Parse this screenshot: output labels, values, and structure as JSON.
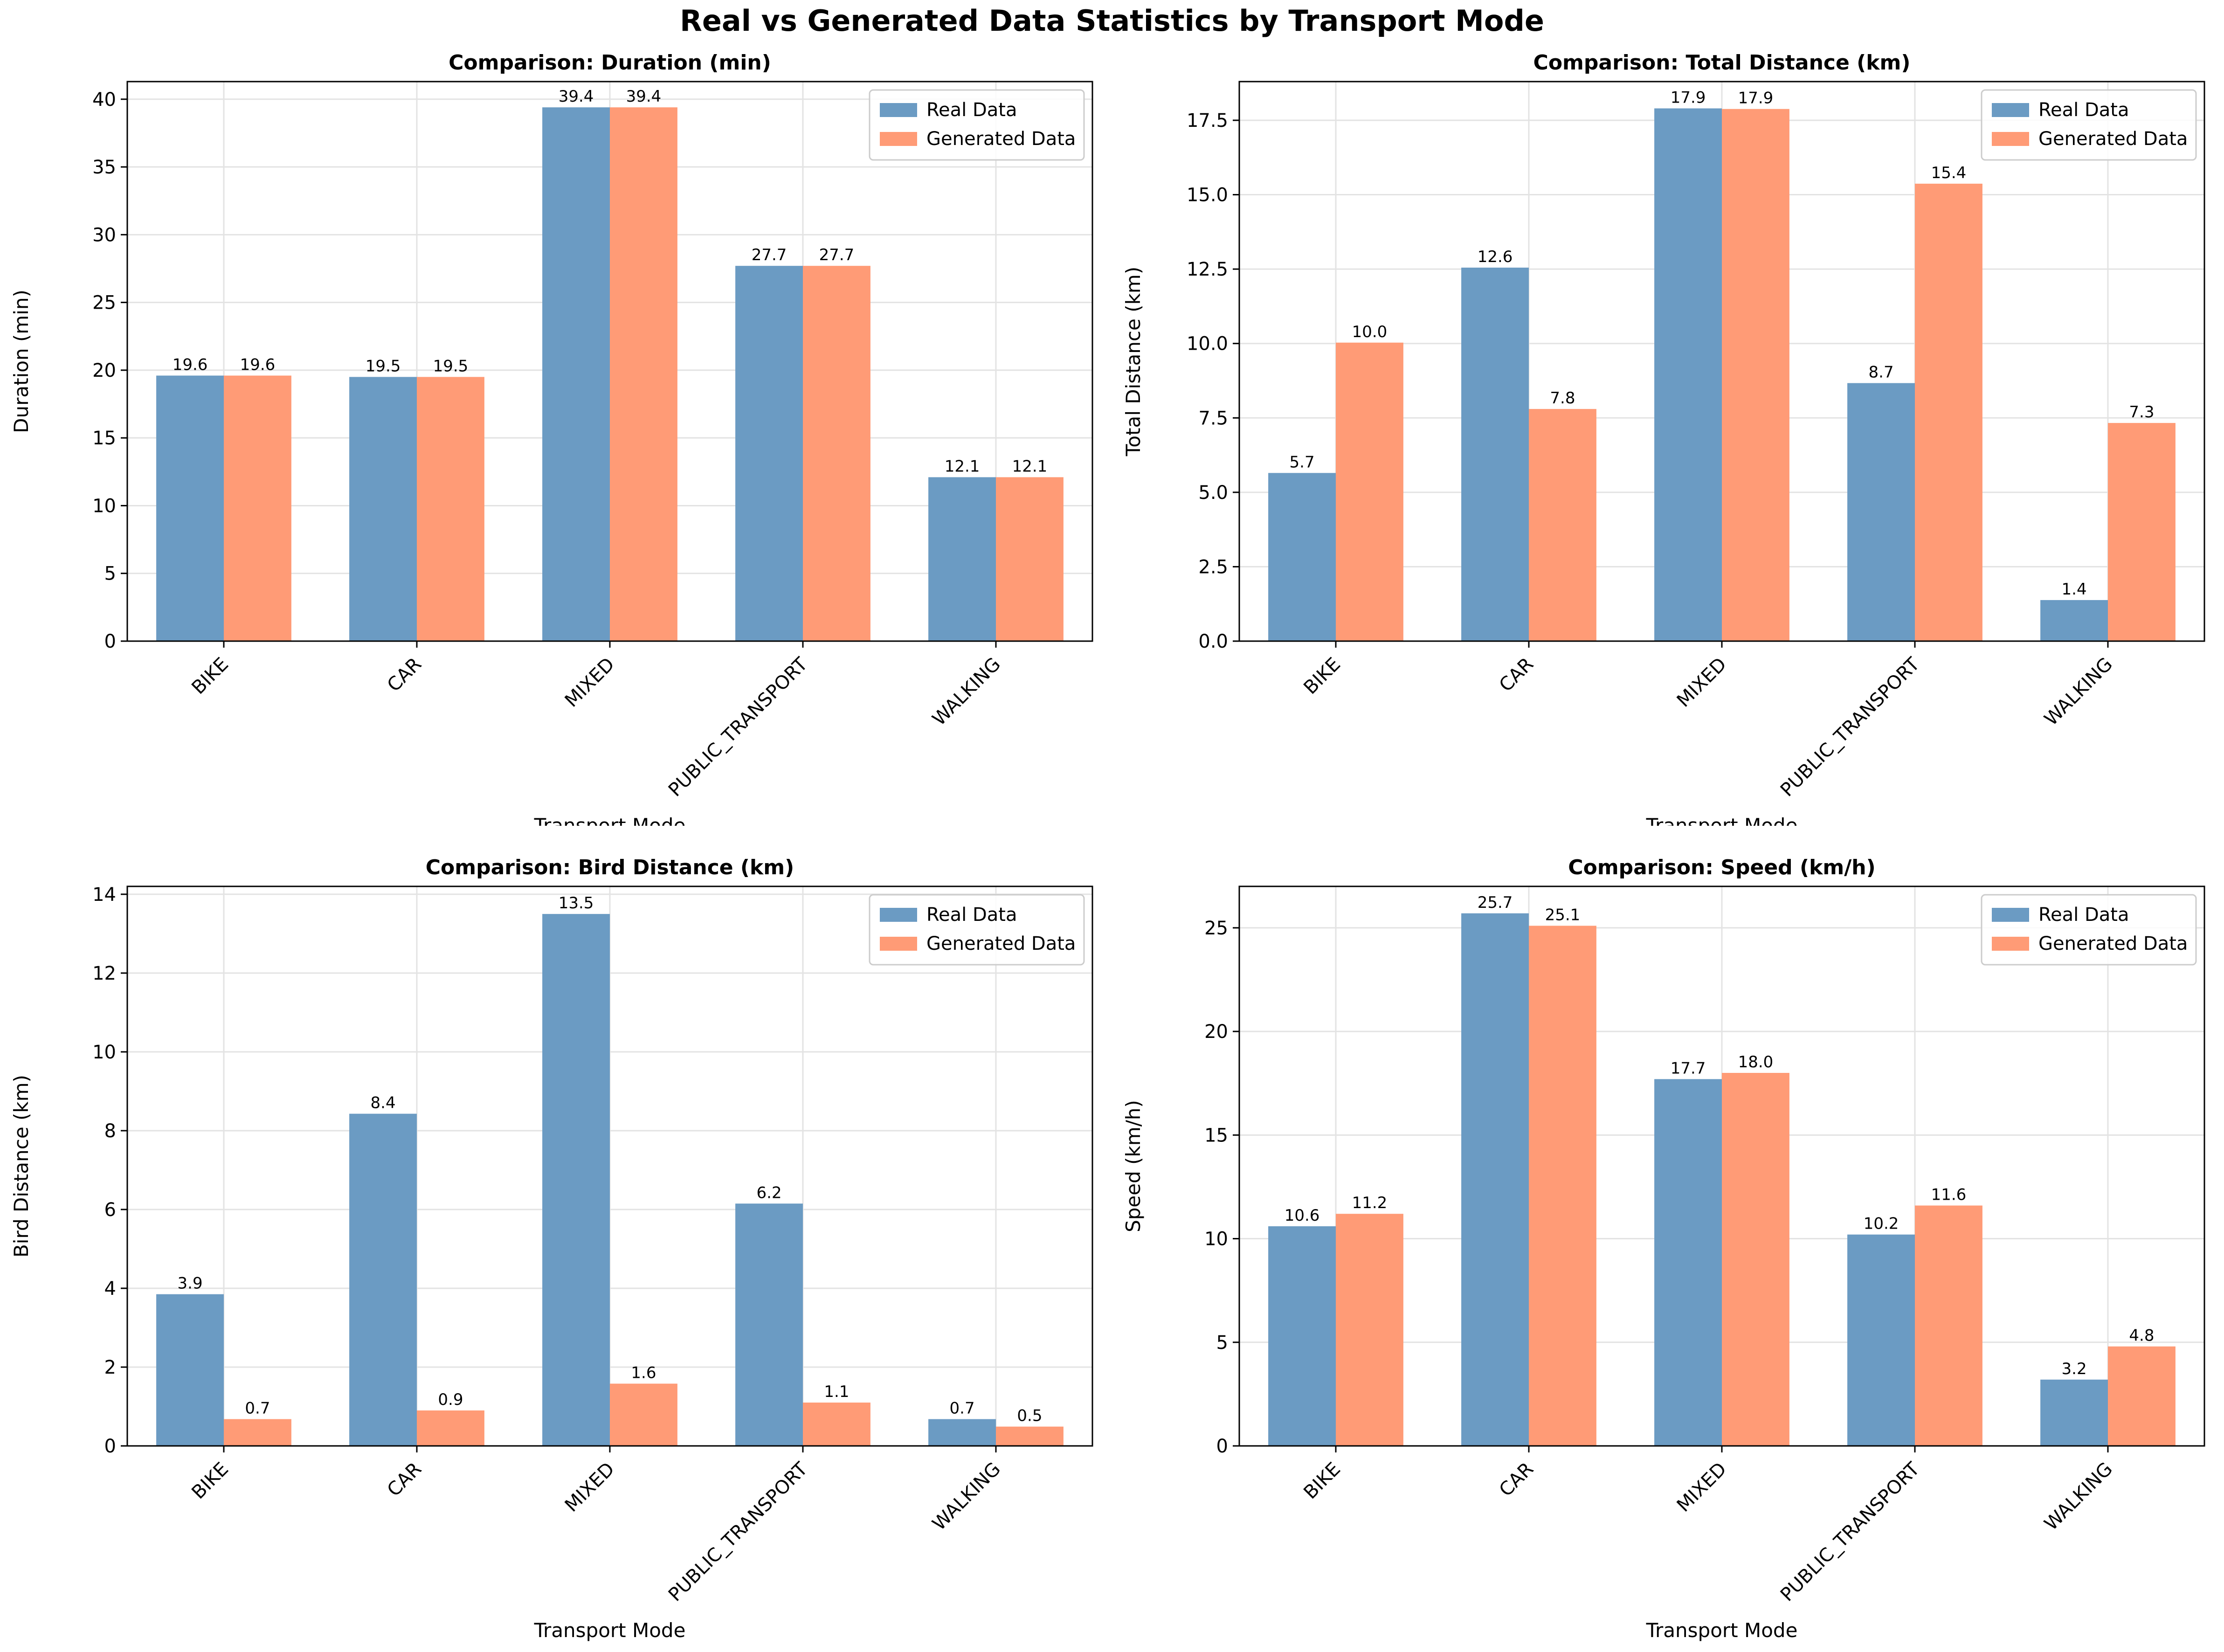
{
  "suptitle": "Real vs Generated Data Statistics by Transport Mode",
  "colors": {
    "real": "#6b9bc3",
    "generated": "#ff9b76"
  },
  "chart_data": [
    {
      "type": "bar",
      "title": "Comparison: Duration (min)",
      "xlabel": "Transport Mode",
      "ylabel": "Duration (min)",
      "categories": [
        "BIKE",
        "CAR",
        "MIXED",
        "PUBLIC_TRANSPORT",
        "WALKING"
      ],
      "ylim": [
        0,
        41.3
      ],
      "yticks": [
        0,
        5,
        10,
        15,
        20,
        25,
        30,
        35,
        40
      ],
      "ytick_labels": [
        "0",
        "5",
        "10",
        "15",
        "20",
        "25",
        "30",
        "35",
        "40"
      ],
      "legend": "top-right",
      "grid": true,
      "series": [
        {
          "name": "Real Data",
          "values": [
            19.6,
            19.5,
            39.4,
            27.7,
            12.1
          ],
          "labels": [
            "19.6",
            "19.5",
            "39.4",
            "27.7",
            "12.1"
          ]
        },
        {
          "name": "Generated Data",
          "values": [
            19.6,
            19.5,
            39.4,
            27.7,
            12.1
          ],
          "labels": [
            "19.6",
            "19.5",
            "39.4",
            "27.7",
            "12.1"
          ]
        }
      ]
    },
    {
      "type": "bar",
      "title": "Comparison: Total Distance (km)",
      "xlabel": "Transport Mode",
      "ylabel": "Total Distance (km)",
      "categories": [
        "BIKE",
        "CAR",
        "MIXED",
        "PUBLIC_TRANSPORT",
        "WALKING"
      ],
      "ylim": [
        0,
        18.8
      ],
      "yticks": [
        0,
        2.5,
        5,
        7.5,
        10,
        12.5,
        15,
        17.5
      ],
      "ytick_labels": [
        "0.0",
        "2.5",
        "5.0",
        "7.5",
        "10.0",
        "12.5",
        "15.0",
        "17.5"
      ],
      "legend": "top-right",
      "grid": true,
      "series": [
        {
          "name": "Real Data",
          "values": [
            5.65,
            12.55,
            17.9,
            8.67,
            1.38
          ],
          "labels": [
            "5.7",
            "12.6",
            "17.9",
            "8.7",
            "1.4"
          ]
        },
        {
          "name": "Generated Data",
          "values": [
            10.03,
            7.8,
            17.88,
            15.37,
            7.33
          ],
          "labels": [
            "10.0",
            "7.8",
            "17.9",
            "15.4",
            "7.3"
          ]
        }
      ]
    },
    {
      "type": "bar",
      "title": "Comparison: Bird Distance (km)",
      "xlabel": "Transport Mode",
      "ylabel": "Bird Distance (km)",
      "categories": [
        "BIKE",
        "CAR",
        "MIXED",
        "PUBLIC_TRANSPORT",
        "WALKING"
      ],
      "ylim": [
        0,
        14.2
      ],
      "yticks": [
        0,
        2,
        4,
        6,
        8,
        10,
        12,
        14
      ],
      "ytick_labels": [
        "0",
        "2",
        "4",
        "6",
        "8",
        "10",
        "12",
        "14"
      ],
      "legend": "top-right",
      "grid": true,
      "series": [
        {
          "name": "Real Data",
          "values": [
            3.85,
            8.43,
            13.5,
            6.15,
            0.68
          ],
          "labels": [
            "3.9",
            "8.4",
            "13.5",
            "6.2",
            "0.7"
          ]
        },
        {
          "name": "Generated Data",
          "values": [
            0.68,
            0.9,
            1.58,
            1.1,
            0.49
          ],
          "labels": [
            "0.7",
            "0.9",
            "1.6",
            "1.1",
            "0.5"
          ]
        }
      ]
    },
    {
      "type": "bar",
      "title": "Comparison: Speed (km/h)",
      "xlabel": "Transport Mode",
      "ylabel": "Speed (km/h)",
      "categories": [
        "BIKE",
        "CAR",
        "MIXED",
        "PUBLIC_TRANSPORT",
        "WALKING"
      ],
      "ylim": [
        0,
        27
      ],
      "yticks": [
        0,
        5,
        10,
        15,
        20,
        25
      ],
      "ytick_labels": [
        "0",
        "5",
        "10",
        "15",
        "20",
        "25"
      ],
      "legend": "top-right",
      "grid": true,
      "series": [
        {
          "name": "Real Data",
          "values": [
            10.6,
            25.7,
            17.7,
            10.2,
            3.2
          ],
          "labels": [
            "10.6",
            "25.7",
            "17.7",
            "10.2",
            "3.2"
          ]
        },
        {
          "name": "Generated Data",
          "values": [
            11.2,
            25.1,
            18.0,
            11.6,
            4.8
          ],
          "labels": [
            "11.2",
            "25.1",
            "18.0",
            "11.6",
            "4.8"
          ]
        }
      ]
    }
  ]
}
